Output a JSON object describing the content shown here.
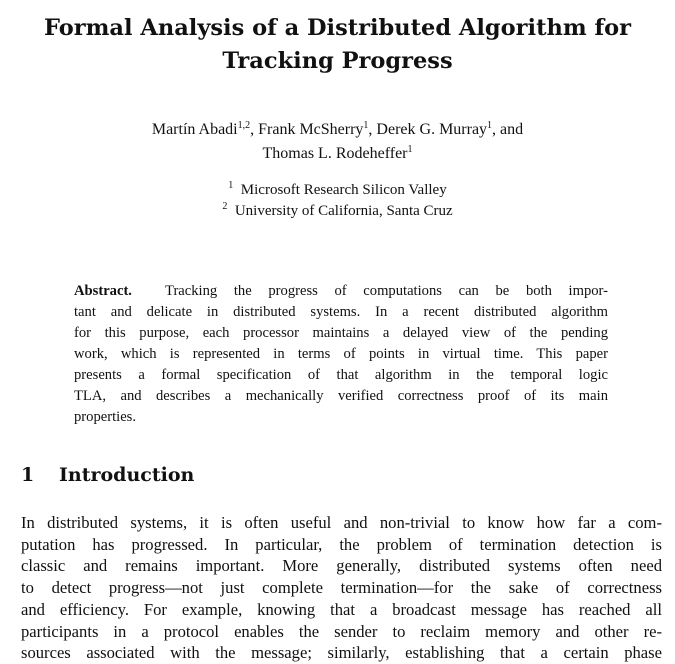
{
  "paper": {
    "title_line1": "Formal Analysis of a Distributed Algorithm for",
    "title_line2": "Tracking Progress",
    "authors": [
      {
        "name": "Martín Abadi",
        "sup": "1,2",
        "sep": ", "
      },
      {
        "name": "Frank McSherry",
        "sup": "1",
        "sep": ", "
      },
      {
        "name": "Derek G. Murray",
        "sup": "1",
        "sep": ", and"
      },
      {
        "name": "Thomas L. Rodeheffer",
        "sup": "1",
        "sep": ""
      }
    ],
    "affiliations": [
      {
        "sup": "1",
        "name": "Microsoft Research Silicon Valley"
      },
      {
        "sup": "2",
        "name": "University of California, Santa Cruz"
      }
    ],
    "abstract_label": "Abstract.",
    "abstract_lines": [
      "Tracking the progress of computations can be both impor-",
      "tant and delicate in distributed systems. In a recent distributed algorithm",
      "for this purpose, each processor maintains a delayed view of the pending",
      "work, which is represented in terms of points in virtual time. This paper",
      "presents a formal specification of that algorithm in the temporal logic",
      "TLA, and describes a mechanically verified correctness proof of its main",
      "properties."
    ],
    "section_number": "1",
    "section_title": "Introduction",
    "intro_lines": [
      "In distributed systems, it is often useful and non-trivial to know how far a com-",
      "putation has progressed. In particular, the problem of termination detection is",
      "classic and remains important. More generally, distributed systems often need",
      "to detect progress—not just complete termination—for the sake of correctness",
      "and efficiency. For example, knowing that a broadcast message has reached all",
      "participants in a protocol enables the sender to reclaim memory and other re-",
      "sources associated with the message; similarly, establishing that a certain phase"
    ]
  }
}
